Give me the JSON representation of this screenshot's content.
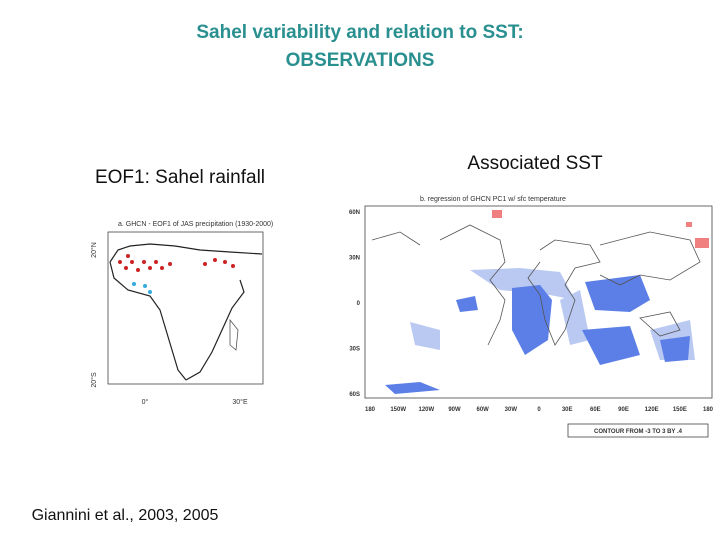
{
  "title": {
    "line1": "Sahel variability and relation to SST:",
    "line2": "OBSERVATIONS"
  },
  "left_panel": {
    "heading": "EOF1: Sahel rainfall",
    "map_title": "a. GHCN - EOF1 of JAS precipitation (1930-2000)",
    "lat_labels": [
      "20°N",
      "20°S"
    ],
    "lon_labels": [
      "0°",
      "30°E"
    ]
  },
  "right_panel": {
    "heading": "Associated SST",
    "map_title": "b. regression of GHCN PC1 w/ sfc temperature",
    "lat_labels": [
      "60N",
      "30N",
      "0",
      "30S",
      "60S"
    ],
    "lon_labels": [
      "180",
      "150W",
      "120W",
      "90W",
      "60W",
      "30W",
      "0",
      "30E",
      "60E",
      "90E",
      "120E",
      "150E",
      "180"
    ],
    "contour_note": "CONTOUR FROM -3 TO 3 BY .4"
  },
  "citation": "Giannini et al., 2003, 2005"
}
